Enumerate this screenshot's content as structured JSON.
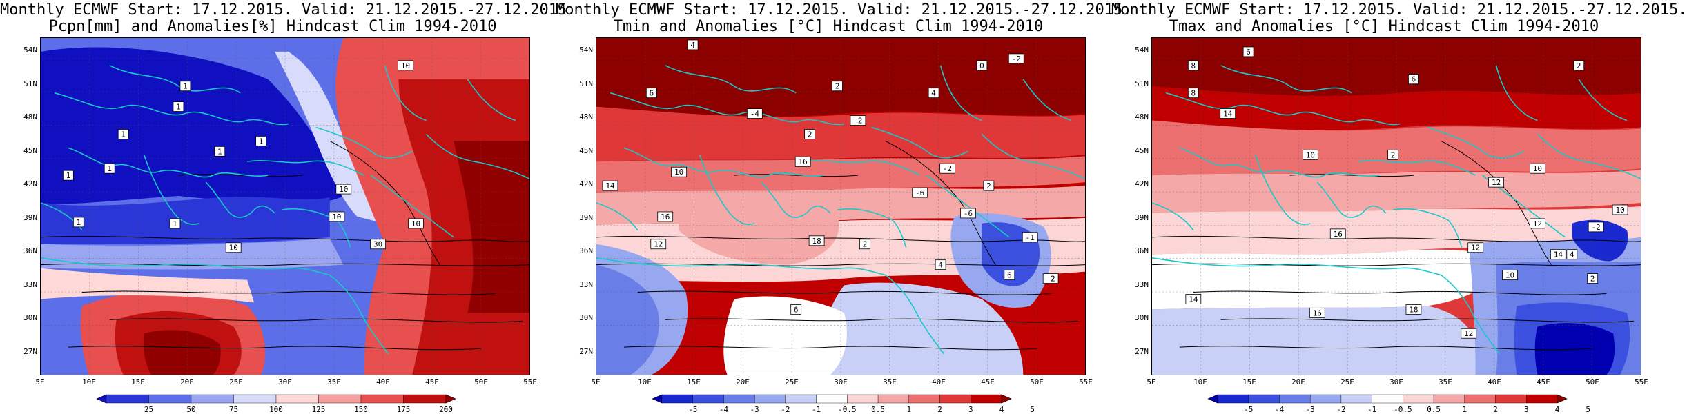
{
  "panels": [
    {
      "title_line1": "Monthly ECMWF Start: 17.12.2015. Valid: 21.12.2015.-27.12.2015.",
      "title_line2": "Pcpn[mm] and Anomalies[%] Hindcast Clim 1994-2010",
      "colorbar_labels": [
        "25",
        "50",
        "75",
        "100",
        "125",
        "150",
        "175",
        "200"
      ],
      "colorbar_colors": [
        "#1010c0",
        "#2a36d6",
        "#5c6ee8",
        "#9ba6f2",
        "#d8dcfa",
        "#ffd8d8",
        "#f6a0a0",
        "#e85050",
        "#c01010",
        "#900000"
      ],
      "contour_labels": [
        "10",
        "10",
        "10",
        "10",
        "10",
        "1",
        "1",
        "1",
        "1",
        "1",
        "1",
        "1",
        "1",
        "1",
        "30"
      ]
    },
    {
      "title_line1": "Monthly ECMWF Start: 17.12.2015. Valid: 21.12.2015.-27.12.2015.",
      "title_line2": "Tmin and Anomalies [°C] Hindcast Clim 1994-2010",
      "colorbar_labels": [
        "-5",
        "-4",
        "-3",
        "-2",
        "-1",
        "-0.5",
        "0.5",
        "1",
        "2",
        "3",
        "4",
        "5"
      ],
      "colorbar_colors": [
        "#0000b0",
        "#1a28d0",
        "#3c50e0",
        "#6a7ee8",
        "#98a8f0",
        "#c8d0f8",
        "#ffffff",
        "#fcd6d6",
        "#f5a8a8",
        "#ec7070",
        "#e03838",
        "#c00000",
        "#8c0000"
      ],
      "contour_labels": [
        "4",
        "6",
        "0",
        "-2",
        "2",
        "4",
        "-2",
        "-4",
        "2",
        "14",
        "10",
        "16",
        "16",
        "-2",
        "-6",
        "-6",
        "12",
        "18",
        "2",
        "6",
        "6",
        "4",
        "-1",
        "-2",
        "2"
      ]
    },
    {
      "title_line1": "Monthly ECMWF Start: 17.12.2015. Valid: 21.12.2015.-27.12.2015.",
      "title_line2": "Tmax and Anomalies [°C] Hindcast Clim 1994-2010",
      "colorbar_labels": [
        "-5",
        "-4",
        "-3",
        "-2",
        "-1",
        "-0.5",
        "0.5",
        "1",
        "2",
        "3",
        "4",
        "5"
      ],
      "colorbar_colors": [
        "#0000b0",
        "#1a28d0",
        "#3c50e0",
        "#6a7ee8",
        "#98a8f0",
        "#c8d0f8",
        "#ffffff",
        "#fcd6d6",
        "#f5a8a8",
        "#ec7070",
        "#e03838",
        "#c00000",
        "#8c0000"
      ],
      "contour_labels": [
        "6",
        "8",
        "2",
        "6",
        "8",
        "14",
        "10",
        "12",
        "10",
        "16",
        "12",
        "-2",
        "12",
        "10",
        "18",
        "14",
        "16",
        "12",
        "4",
        "2",
        "14",
        "10",
        "2"
      ]
    }
  ],
  "lat_labels": [
    "54N",
    "51N",
    "48N",
    "45N",
    "42N",
    "39N",
    "36N",
    "33N",
    "30N",
    "27N"
  ],
  "lon_labels": [
    "5E",
    "10E",
    "15E",
    "20E",
    "25E",
    "30E",
    "35E",
    "40E",
    "45E",
    "50E",
    "55E"
  ]
}
